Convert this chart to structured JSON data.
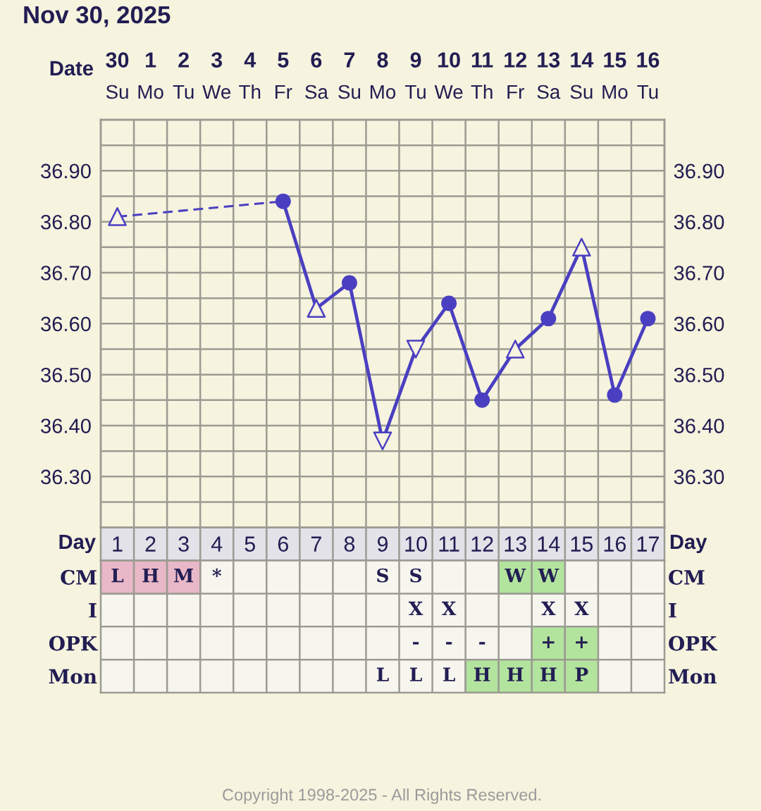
{
  "chart_data": [
    {
      "type": "line",
      "title": "Nov 30, 2025",
      "xlabel": "Date",
      "categories": [
        "30\nSu",
        "1\nMo",
        "2\nTu",
        "3\nWe",
        "4\nTh",
        "5\nFr",
        "6\nSa",
        "7\nSu",
        "8\nMo",
        "9\nTu",
        "10\nWe",
        "11\nTh",
        "12\nFr",
        "13\nSa",
        "14\nSu",
        "15\nMo",
        "16\nTu"
      ],
      "series": [
        {
          "type": "line",
          "color": "#4a3fc0",
          "line_style": "dashed",
          "marker": "none",
          "values": [
            36.81,
            null,
            null,
            null,
            null,
            36.84,
            null,
            null,
            null,
            null,
            null,
            null,
            null,
            null,
            null,
            null,
            null
          ]
        },
        {
          "type": "line",
          "color": "#4a3fc0",
          "line_style": "solid",
          "marker": "none",
          "values": [
            null,
            null,
            null,
            null,
            null,
            36.84,
            36.63,
            36.68,
            36.37,
            36.55,
            36.64,
            36.45,
            36.55,
            36.61,
            36.75,
            36.46,
            36.61
          ]
        },
        {
          "type": "scatter",
          "color": "#4a3fc0",
          "marker": "circle",
          "values": [
            null,
            null,
            null,
            null,
            null,
            36.84,
            null,
            36.68,
            null,
            null,
            36.64,
            36.45,
            null,
            36.61,
            null,
            36.46,
            36.61
          ]
        },
        {
          "type": "scatter",
          "color": "#4a3fc0",
          "marker": "triangle",
          "values": [
            36.81,
            null,
            null,
            null,
            null,
            null,
            36.63,
            null,
            null,
            null,
            null,
            null,
            36.55,
            null,
            36.75,
            null,
            null
          ]
        },
        {
          "type": "scatter",
          "color": "#4a3fc0",
          "marker": "triangle_down",
          "values": [
            null,
            null,
            null,
            null,
            null,
            null,
            null,
            null,
            36.37,
            36.55,
            null,
            null,
            null,
            null,
            null,
            null,
            null
          ]
        }
      ],
      "ylim": [
        36.2,
        37.0
      ],
      "yticks": [
        {
          "value": 36.25,
          "label": null
        },
        {
          "value": 36.3,
          "label": "36.30"
        },
        {
          "value": 36.35,
          "label": null
        },
        {
          "value": 36.4,
          "label": "36.40"
        },
        {
          "value": 36.45,
          "label": null
        },
        {
          "value": 36.5,
          "label": "36.50"
        },
        {
          "value": 36.55,
          "label": null
        },
        {
          "value": 36.6,
          "label": "36.60"
        },
        {
          "value": 36.65,
          "label": null
        },
        {
          "value": 36.7,
          "label": "36.70"
        },
        {
          "value": 36.75,
          "label": null
        },
        {
          "value": 36.8,
          "label": "36.80"
        },
        {
          "value": 36.85,
          "label": null
        },
        {
          "value": 36.9,
          "label": "36.90"
        },
        {
          "value": 36.95,
          "label": null
        }
      ],
      "y2lim": [
        36.2,
        37.0
      ],
      "y2ticks": [
        {
          "value": 36.25,
          "label": null
        },
        {
          "value": 36.3,
          "label": "36.30"
        },
        {
          "value": 36.35,
          "label": null
        },
        {
          "value": 36.4,
          "label": "36.40"
        },
        {
          "value": 36.45,
          "label": null
        },
        {
          "value": 36.5,
          "label": "36.50"
        },
        {
          "value": 36.55,
          "label": null
        },
        {
          "value": 36.6,
          "label": "36.60"
        },
        {
          "value": 36.65,
          "label": null
        },
        {
          "value": 36.7,
          "label": "36.70"
        },
        {
          "value": 36.75,
          "label": null
        },
        {
          "value": 36.8,
          "label": "36.80"
        },
        {
          "value": 36.85,
          "label": null
        },
        {
          "value": 36.9,
          "label": "36.90"
        },
        {
          "value": 36.95,
          "label": null
        }
      ],
      "grid": true,
      "annotations": [
        "Copyright 1998-2025 - All Rights Reserved."
      ]
    },
    {
      "type": "heatmap",
      "xlabel": "Day",
      "categories": [
        "1",
        "2",
        "3",
        "4",
        "5",
        "6",
        "7",
        "8",
        "9",
        "10",
        "11",
        "12",
        "13",
        "14",
        "15",
        "16",
        "17"
      ],
      "y_categories": [
        "CM",
        "I",
        "OPK",
        "Mon"
      ],
      "y2_categories": [
        "CM",
        "I",
        "OPK",
        "Mon"
      ],
      "cells": [
        [
          "L",
          "H",
          "M",
          "*",
          null,
          null,
          null,
          null,
          "S",
          "S",
          null,
          null,
          "W",
          "W",
          null,
          null,
          null
        ],
        [
          null,
          null,
          null,
          null,
          null,
          null,
          null,
          null,
          null,
          "X",
          "X",
          null,
          null,
          "X",
          "X",
          null,
          null
        ],
        [
          null,
          null,
          null,
          null,
          null,
          null,
          null,
          null,
          null,
          "-",
          "-",
          "-",
          null,
          "+",
          "+",
          null,
          null
        ],
        [
          null,
          null,
          null,
          null,
          null,
          null,
          null,
          null,
          "L",
          "L",
          "L",
          "H",
          "H",
          "H",
          "P",
          null,
          null
        ]
      ],
      "colors": [
        [
          "#e9b8c8",
          "#e9b8c8",
          "#e9b8c8",
          null,
          null,
          null,
          null,
          null,
          null,
          null,
          null,
          null,
          "#b3e49e",
          "#b3e49e",
          null,
          null,
          null
        ],
        [
          null,
          null,
          null,
          null,
          null,
          null,
          null,
          null,
          null,
          null,
          null,
          null,
          null,
          null,
          null,
          null,
          null
        ],
        [
          null,
          null,
          null,
          null,
          null,
          null,
          null,
          null,
          null,
          null,
          null,
          null,
          null,
          "#b3e49e",
          "#b3e49e",
          null,
          null
        ],
        [
          null,
          null,
          null,
          null,
          null,
          null,
          null,
          null,
          null,
          null,
          null,
          "#b3e49e",
          "#b3e49e",
          "#b3e49e",
          "#b3e49e",
          null,
          null
        ]
      ],
      "grid": true
    }
  ]
}
